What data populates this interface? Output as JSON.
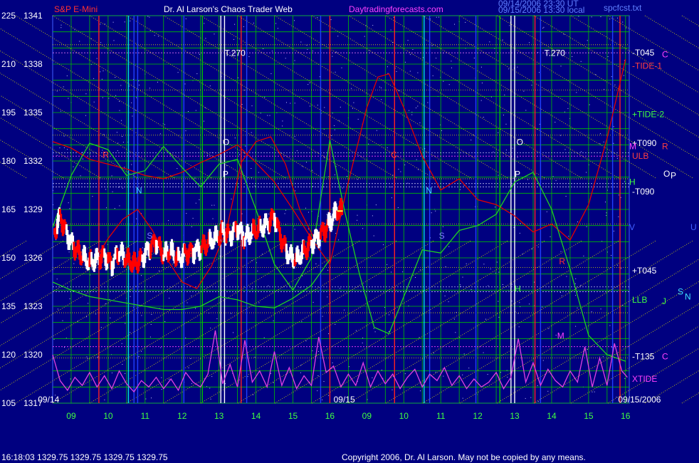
{
  "header": {
    "symbol": "S&P E-Mini",
    "title": "Dr. Al Larson's Chaos Trader Web",
    "site": "Daytradingforecasts.com",
    "timestamp_1": "09/14/2006 23:30 UT",
    "timestamp_2": "09/15/2006 13:30 local",
    "file": "spcfcst.txt"
  },
  "footer": {
    "quote": "16:18:03  1329.75 1329.75 1329.75 1329.75",
    "copyright": "Copyright 2006, Dr. Al Larson. May not be copied by any means."
  },
  "colors": {
    "background": "#000080",
    "grid_green": "#00c000",
    "grid_yellow": "#e0e000",
    "price_white": "#ffffff",
    "price_red": "#ff0000",
    "forecast_red": "#e00000",
    "forecast_green": "#20d020",
    "xtide_magenta": "#e040e0",
    "flux_blue": "#2040ff",
    "flux_cyan": "#00e0e0"
  },
  "chart_data": {
    "type": "line",
    "title": "Dr. Al Larson's Chaos Trader Web",
    "ylim": [
      1317,
      1341
    ],
    "y_ticks": [
      {
        "left": "225",
        "price": "1341",
        "value": 1341
      },
      {
        "left": "210",
        "price": "1338",
        "value": 1338
      },
      {
        "left": "195",
        "price": "1335",
        "value": 1335
      },
      {
        "left": "180",
        "price": "1332",
        "value": 1332
      },
      {
        "left": "165",
        "price": "1329",
        "value": 1329
      },
      {
        "left": "150",
        "price": "1326",
        "value": 1326
      },
      {
        "left": "135",
        "price": "1323",
        "value": 1323
      },
      {
        "left": "120",
        "price": "1320",
        "value": 1320
      },
      {
        "left": "105",
        "price": "1317",
        "value": 1317
      }
    ],
    "x_ticks": [
      {
        "label": "09",
        "t": 9
      },
      {
        "label": "10",
        "t": 10
      },
      {
        "label": "11",
        "t": 11
      },
      {
        "label": "12",
        "t": 12
      },
      {
        "label": "13",
        "t": 13
      },
      {
        "label": "14",
        "t": 14
      },
      {
        "label": "15",
        "t": 15
      },
      {
        "label": "16",
        "t": 16
      },
      {
        "label": "09",
        "t": 17
      },
      {
        "label": "10",
        "t": 18
      },
      {
        "label": "11",
        "t": 19
      },
      {
        "label": "12",
        "t": 20
      },
      {
        "label": "13",
        "t": 21
      },
      {
        "label": "14",
        "t": 22
      },
      {
        "label": "15",
        "t": 23
      },
      {
        "label": "16",
        "t": 24
      }
    ],
    "date_labels": [
      {
        "text": "09/14",
        "t": 8.1
      },
      {
        "text": "09/15",
        "t": 16.1
      },
      {
        "text": "09/15/2006",
        "t": 23.8
      }
    ],
    "x_range": [
      8.5,
      24.1
    ],
    "level_labels": [
      {
        "text": "-T045",
        "value": 1338.7,
        "color": "#ffffff"
      },
      {
        "text": "-TIDE-1",
        "value": 1337.9,
        "color": "#ff4040"
      },
      {
        "text": "+TIDE-2",
        "value": 1334.9,
        "color": "#40ff40"
      },
      {
        "text": "+T090",
        "value": 1333.1,
        "color": "#ffffff"
      },
      {
        "text": "ULB",
        "value": 1332.3,
        "color": "#ff4040"
      },
      {
        "text": "-T090",
        "value": 1330.1,
        "color": "#ffffff"
      },
      {
        "text": "+T045",
        "value": 1325.2,
        "color": "#ffffff"
      },
      {
        "text": "LLB",
        "value": 1323.4,
        "color": "#40ff40"
      },
      {
        "text": "-T135",
        "value": 1319.9,
        "color": "#ffffff"
      },
      {
        "text": "XTIDE",
        "value": 1318.5,
        "color": "#ff40ff"
      }
    ],
    "planet_labels": [
      {
        "text": "C",
        "value": 1338.6,
        "col": "b",
        "color": "#ff40ff"
      },
      {
        "text": "M",
        "value": 1332.9,
        "col": "a",
        "color": "#ff40ff"
      },
      {
        "text": "R",
        "value": 1332.9,
        "col": "b",
        "color": "#ff4040"
      },
      {
        "text": "H",
        "value": 1330.7,
        "col": "a",
        "color": "#40ff40"
      },
      {
        "text": "O",
        "value": 1331.2,
        "col": "c",
        "color": "#ffffff"
      },
      {
        "text": "P",
        "value": 1331.1,
        "col": "d",
        "color": "#ffffff"
      },
      {
        "text": "V",
        "value": 1327.9,
        "col": "a",
        "color": "#4060ff"
      },
      {
        "text": "U",
        "value": 1327.9,
        "col": "e",
        "color": "#4060ff"
      },
      {
        "text": "J",
        "value": 1323.3,
        "col": "b",
        "color": "#40ff40"
      },
      {
        "text": "S",
        "value": 1323.9,
        "col": "f",
        "color": "#40e0ff"
      },
      {
        "text": "N",
        "value": 1323.6,
        "col": "g",
        "color": "#40e0ff"
      },
      {
        "text": "C",
        "value": 1319.9,
        "col": "b",
        "color": "#ff40ff"
      }
    ],
    "chart_annotations": [
      {
        "text": "T.270",
        "t": 13.15,
        "value": 1338.5,
        "color": "#ffffff"
      },
      {
        "text": "T.270",
        "t": 21.8,
        "value": 1338.5,
        "color": "#ffffff"
      },
      {
        "text": "O",
        "t": 13.1,
        "value": 1333.0,
        "color": "#ffffff"
      },
      {
        "text": "O",
        "t": 21.05,
        "value": 1333.0,
        "color": "#ffffff"
      },
      {
        "text": "P",
        "t": 13.1,
        "value": 1331.0,
        "color": "#ffffff"
      },
      {
        "text": "P",
        "t": 21.0,
        "value": 1331.0,
        "color": "#ffffff"
      },
      {
        "text": "N",
        "t": 10.75,
        "value": 1330.0,
        "color": "#40e0ff"
      },
      {
        "text": "N",
        "t": 18.6,
        "value": 1330.0,
        "color": "#40e0ff"
      },
      {
        "text": "S",
        "t": 11.05,
        "value": 1327.2,
        "color": "#8080ff"
      },
      {
        "text": "S",
        "t": 18.95,
        "value": 1327.2,
        "color": "#8080ff"
      },
      {
        "text": "R",
        "t": 9.85,
        "value": 1332.2,
        "color": "#ff3030"
      },
      {
        "text": "C",
        "t": 17.65,
        "value": 1332.2,
        "color": "#ff3030"
      },
      {
        "text": "R",
        "t": 22.2,
        "value": 1325.6,
        "color": "#ff3030"
      },
      {
        "text": "M",
        "t": 22.15,
        "value": 1321.0,
        "color": "#ff40ff"
      },
      {
        "text": "H",
        "t": 21.0,
        "value": 1323.9,
        "color": "#40ff40"
      }
    ],
    "series": [
      {
        "role": "price",
        "color": "#ffffff",
        "x": [
          8.55,
          8.7,
          8.9,
          9.1,
          9.3,
          9.5,
          9.7,
          9.9,
          10.1,
          10.3,
          10.5,
          10.7,
          10.9,
          11.1,
          11.3,
          11.5,
          11.7,
          11.9,
          12.1,
          12.3,
          12.5,
          12.7,
          12.9,
          13.1,
          13.3,
          13.5,
          13.7,
          13.9,
          14.1,
          14.3,
          14.5,
          14.7,
          14.9,
          15.1,
          15.3,
          15.5,
          15.7,
          15.9,
          16.05,
          16.2,
          16.35
        ],
        "y": [
          1327.6,
          1328.6,
          1327.4,
          1326.6,
          1326.1,
          1325.7,
          1325.9,
          1326.2,
          1325.6,
          1326.4,
          1325.9,
          1325.6,
          1325.9,
          1326.6,
          1327.0,
          1326.2,
          1326.4,
          1325.9,
          1326.3,
          1326.4,
          1326.6,
          1326.9,
          1327.2,
          1327.6,
          1327.4,
          1327.9,
          1327.2,
          1327.6,
          1327.8,
          1328.1,
          1328.6,
          1327.1,
          1326.1,
          1325.9,
          1326.4,
          1326.9,
          1327.4,
          1327.8,
          1328.4,
          1328.9,
          1328.9
        ]
      },
      {
        "role": "forecast-red",
        "color": "#e00000",
        "x": [
          8.5,
          9,
          9.5,
          10,
          10.5,
          11,
          11.5,
          12,
          12.5,
          13,
          13.5,
          14,
          14.5,
          15,
          15.5,
          16,
          16.5,
          17,
          17.3,
          17.6,
          18,
          18.5,
          19,
          19.5,
          20,
          20.5,
          21,
          21.5,
          22,
          22.5,
          23,
          23.5,
          24
        ],
        "y": [
          1333.2,
          1332.8,
          1332.1,
          1331.8,
          1331.5,
          1331.1,
          1330.9,
          1331.3,
          1331.9,
          1332.4,
          1333.0,
          1331.9,
          1330.7,
          1329.0,
          1327.2,
          1325.6,
          1330.7,
          1335.3,
          1337.2,
          1337.4,
          1335.3,
          1332.3,
          1330.2,
          1330.9,
          1329.6,
          1329.3,
          1328.6,
          1327.6,
          1328.1,
          1327.1,
          1329.3,
          1333.4,
          1338.3
        ]
      },
      {
        "role": "forecast-red-secondary",
        "color": "#e00000",
        "x": [
          9.2,
          9.6,
          10,
          10.4,
          10.8,
          11.2,
          11.6,
          12,
          12.4,
          12.8,
          13.2,
          13.6,
          14,
          14.4,
          14.8,
          15.2,
          15.6,
          16
        ],
        "y": [
          1326.1,
          1325.7,
          1327.2,
          1328.4,
          1329.0,
          1327.7,
          1325.9,
          1324.5,
          1324.1,
          1325.5,
          1327.7,
          1331.9,
          1333.2,
          1333.5,
          1331.8,
          1328.9,
          1327.1,
          1328.3
        ]
      },
      {
        "role": "forecast-green",
        "color": "#20d020",
        "x": [
          8.5,
          9,
          9.5,
          10,
          10.5,
          11,
          11.5,
          12,
          12.5,
          13,
          13.5,
          14,
          14.5,
          15,
          15.5,
          16,
          16.4,
          16.8,
          17.2,
          17.6,
          18,
          18.5,
          19,
          19.5,
          20,
          20.5,
          21,
          21.5,
          22,
          22.5,
          23,
          23.5,
          24
        ],
        "y": [
          1327.9,
          1331.1,
          1333.1,
          1332.7,
          1331.1,
          1331.4,
          1332.9,
          1331.6,
          1330.4,
          1331.8,
          1332.1,
          1329.0,
          1325.6,
          1324.0,
          1326.0,
          1333.3,
          1328.9,
          1325.0,
          1321.7,
          1321.3,
          1323.6,
          1326.5,
          1326.3,
          1327.7,
          1328.0,
          1328.7,
          1330.7,
          1331.3,
          1329.0,
          1325.3,
          1321.2,
          1320.0,
          1319.6
        ]
      },
      {
        "role": "forecast-green-secondary",
        "color": "#20d020",
        "x": [
          8.5,
          9,
          9.5,
          10,
          10.5,
          11,
          11.5,
          12,
          12.5,
          13,
          13.5,
          14,
          14.5,
          15,
          15.5,
          16
        ],
        "y": [
          1324.5,
          1324.0,
          1323.6,
          1323.4,
          1323.2,
          1323.0,
          1322.8,
          1322.8,
          1323.0,
          1323.6,
          1323.4,
          1323.0,
          1322.9,
          1323.5,
          1324.3,
          1325.9
        ]
      },
      {
        "role": "xtide",
        "color": "#e040e0",
        "x": [
          8.5,
          8.7,
          8.9,
          9.1,
          9.3,
          9.5,
          9.7,
          9.9,
          10.1,
          10.3,
          10.5,
          10.7,
          10.9,
          11.1,
          11.3,
          11.5,
          11.7,
          11.9,
          12.1,
          12.3,
          12.5,
          12.7,
          12.9,
          13.1,
          13.3,
          13.5,
          13.7,
          13.9,
          14.1,
          14.3,
          14.5,
          14.7,
          14.9,
          15.1,
          15.3,
          15.5,
          15.7,
          15.9,
          16.1,
          16.3,
          16.5,
          16.7,
          16.9,
          17.1,
          17.3,
          17.5,
          17.7,
          17.9,
          18.1,
          18.3,
          18.5,
          18.7,
          18.9,
          19.1,
          19.3,
          19.5,
          19.7,
          19.9,
          20.1,
          20.3,
          20.5,
          20.7,
          20.9,
          21.1,
          21.3,
          21.5,
          21.7,
          21.9,
          22.1,
          22.3,
          22.5,
          22.7,
          22.9,
          23.1,
          23.3,
          23.5,
          23.7,
          23.9,
          24.05
        ],
        "y": [
          1320.0,
          1318.4,
          1317.8,
          1318.6,
          1318.1,
          1318.9,
          1318.0,
          1318.7,
          1317.9,
          1319.0,
          1318.2,
          1317.7,
          1318.4,
          1318.0,
          1318.6,
          1317.9,
          1318.5,
          1317.8,
          1318.9,
          1318.3,
          1318.0,
          1318.8,
          1321.5,
          1318.2,
          1319.4,
          1318.0,
          1320.9,
          1318.3,
          1319.0,
          1318.0,
          1320.2,
          1318.1,
          1319.2,
          1317.9,
          1318.7,
          1318.1,
          1321.1,
          1318.9,
          1319.3,
          1318.0,
          1318.8,
          1318.1,
          1319.5,
          1318.0,
          1319.0,
          1318.2,
          1318.8,
          1317.9,
          1318.6,
          1319.1,
          1318.0,
          1318.8,
          1318.4,
          1319.2,
          1318.1,
          1318.7,
          1317.9,
          1318.5,
          1318.0,
          1318.3,
          1318.9,
          1317.9,
          1318.6,
          1321.0,
          1318.3,
          1319.5,
          1318.1,
          1319.1,
          1318.4,
          1318.0,
          1319.0,
          1318.3,
          1320.5,
          1318.0,
          1319.8,
          1318.1,
          1320.7,
          1319.0,
          1318.6
        ]
      }
    ],
    "flux_lines": [
      {
        "t": 10.55,
        "color": "#00e0e0"
      },
      {
        "t": 10.7,
        "color": "#2040ff"
      },
      {
        "t": 10.8,
        "color": "#2040ff"
      },
      {
        "t": 12.05,
        "color": "#2040ff"
      },
      {
        "t": 12.55,
        "color": "#00c000"
      },
      {
        "t": 13.05,
        "color": "#ffffff"
      },
      {
        "t": 13.15,
        "color": "#ffffff"
      },
      {
        "t": 13.6,
        "color": "#ff2020"
      },
      {
        "t": 13.75,
        "color": "#2040ff"
      },
      {
        "t": 15.75,
        "color": "#2040ff"
      },
      {
        "t": 16.0,
        "color": "#ff2020"
      },
      {
        "t": 18.55,
        "color": "#00e0e0"
      },
      {
        "t": 18.7,
        "color": "#2040ff"
      },
      {
        "t": 19.95,
        "color": "#2040ff"
      },
      {
        "t": 20.6,
        "color": "#00c000"
      },
      {
        "t": 20.9,
        "color": "#ffffff"
      },
      {
        "t": 21.0,
        "color": "#ffffff"
      },
      {
        "t": 21.55,
        "color": "#ff2020"
      },
      {
        "t": 21.7,
        "color": "#2040ff"
      },
      {
        "t": 23.65,
        "color": "#2040ff"
      },
      {
        "t": 23.85,
        "color": "#ff2020"
      },
      {
        "t": 9.75,
        "color": "#ff2020"
      },
      {
        "t": 17.75,
        "color": "#ff2020"
      }
    ]
  }
}
